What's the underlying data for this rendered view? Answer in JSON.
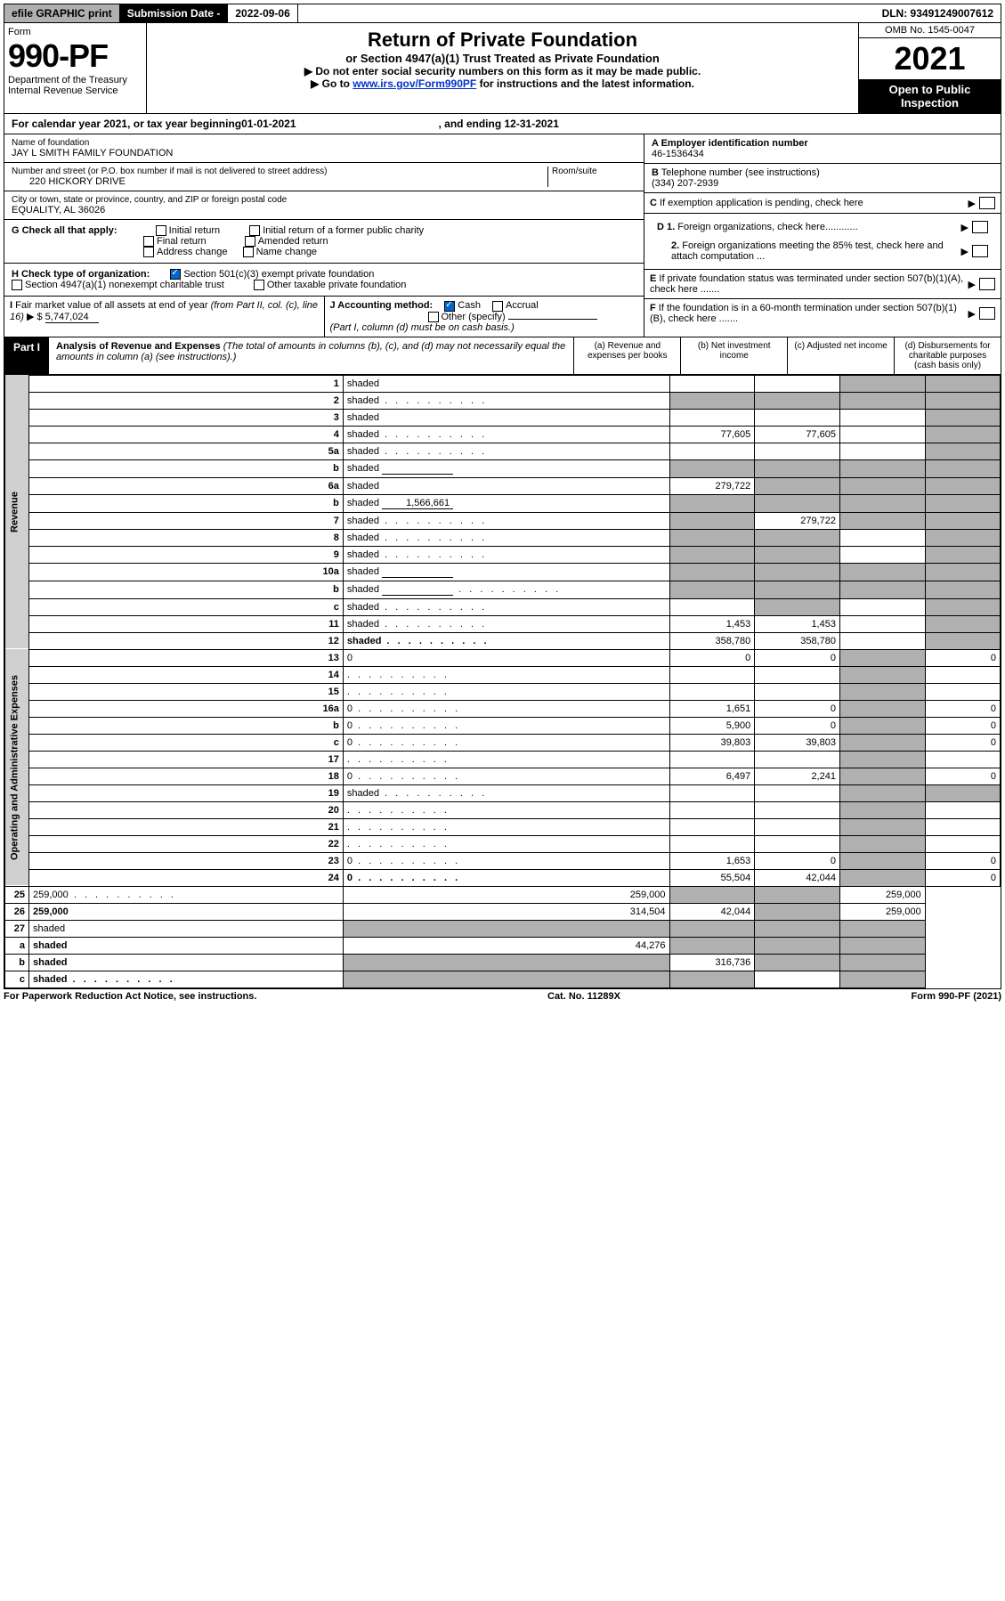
{
  "topbar": {
    "efile": "efile GRAPHIC print",
    "subdate_label": "Submission Date - ",
    "subdate_val": "2022-09-06",
    "dln": "DLN: 93491249007612"
  },
  "header": {
    "form_label": "Form",
    "formnum": "990-PF",
    "dept": "Department of the Treasury\nInternal Revenue Service",
    "title": "Return of Private Foundation",
    "subtitle": "or Section 4947(a)(1) Trust Treated as Private Foundation",
    "instr1": "▶ Do not enter social security numbers on this form as it may be made public.",
    "instr2_pre": "▶ Go to ",
    "instr2_link": "www.irs.gov/Form990PF",
    "instr2_post": " for instructions and the latest information.",
    "omb": "OMB No. 1545-0047",
    "year": "2021",
    "open": "Open to Public Inspection"
  },
  "calendar": {
    "pre": "For calendar year 2021, or tax year beginning ",
    "begin": "01-01-2021",
    "mid": ", and ending ",
    "end": "12-31-2021"
  },
  "info": {
    "name_label": "Name of foundation",
    "name": "JAY L SMITH FAMILY FOUNDATION",
    "addr_label": "Number and street (or P.O. box number if mail is not delivered to street address)",
    "addr": "220 HICKORY DRIVE",
    "room_label": "Room/suite",
    "city_label": "City or town, state or province, country, and ZIP or foreign postal code",
    "city": "EQUALITY, AL  36026",
    "a_label": "A Employer identification number",
    "a_val": "46-1536434",
    "b_label": "B Telephone number (see instructions)",
    "b_val": "(334) 207-2939",
    "c_label": "C If exemption application is pending, check here",
    "d1": "D 1. Foreign organizations, check here............",
    "d2": "2. Foreign organizations meeting the 85% test, check here and attach computation ...",
    "e_label": "E  If private foundation status was terminated under section 507(b)(1)(A), check here .......",
    "f_label": "F  If the foundation is in a 60-month termination under section 507(b)(1)(B), check here ......."
  },
  "g": {
    "label": "G Check all that apply:",
    "opts": [
      "Initial return",
      "Initial return of a former public charity",
      "Final return",
      "Amended return",
      "Address change",
      "Name change"
    ]
  },
  "h": {
    "label": "H Check type of organization:",
    "o1": "Section 501(c)(3) exempt private foundation",
    "o2": "Section 4947(a)(1) nonexempt charitable trust",
    "o3": "Other taxable private foundation"
  },
  "i": {
    "label": "I Fair market value of all assets at end of year (from Part II, col. (c), line 16)",
    "val": "5,747,024"
  },
  "j": {
    "label": "J Accounting method:",
    "o1": "Cash",
    "o2": "Accrual",
    "o3": "Other (specify)",
    "note": "(Part I, column (d) must be on cash basis.)"
  },
  "part1": {
    "label": "Part I",
    "title": "Analysis of Revenue and Expenses",
    "sub": "(The total of amounts in columns (b), (c), and (d) may not necessarily equal the amounts in column (a) (see instructions).)",
    "col_a": "(a)   Revenue and expenses per books",
    "col_b": "(b)   Net investment income",
    "col_c": "(c)   Adjusted net income",
    "col_d": "(d)   Disbursements for charitable purposes (cash basis only)"
  },
  "sections": {
    "revenue": "Revenue",
    "oae": "Operating and Administrative Expenses"
  },
  "rows": [
    {
      "n": "1",
      "d": "shaded",
      "a": "",
      "b": "",
      "c": "shaded"
    },
    {
      "n": "2",
      "d": "shaded",
      "a": "shaded",
      "b": "shaded",
      "c": "shaded",
      "dots": true,
      "bold_not": true
    },
    {
      "n": "3",
      "d": "shaded",
      "a": "",
      "b": "",
      "c": ""
    },
    {
      "n": "4",
      "d": "shaded",
      "a": "77,605",
      "b": "77,605",
      "c": "",
      "dots": true
    },
    {
      "n": "5a",
      "d": "shaded",
      "a": "",
      "b": "",
      "c": "",
      "dots": true
    },
    {
      "n": "b",
      "d": "shaded",
      "a": "shaded",
      "b": "shaded",
      "c": "shaded",
      "inline_blank": true
    },
    {
      "n": "6a",
      "d": "shaded",
      "a": "279,722",
      "b": "shaded",
      "c": "shaded"
    },
    {
      "n": "b",
      "d": "shaded",
      "a": "shaded",
      "b": "shaded",
      "c": "shaded",
      "inline_val": "1,566,661"
    },
    {
      "n": "7",
      "d": "shaded",
      "a": "shaded",
      "b": "279,722",
      "c": "shaded",
      "dots": true
    },
    {
      "n": "8",
      "d": "shaded",
      "a": "shaded",
      "b": "shaded",
      "c": "",
      "dots": true
    },
    {
      "n": "9",
      "d": "shaded",
      "a": "shaded",
      "b": "shaded",
      "c": "",
      "dots": true
    },
    {
      "n": "10a",
      "d": "shaded",
      "a": "shaded",
      "b": "shaded",
      "c": "shaded",
      "inline_blank": true
    },
    {
      "n": "b",
      "d": "shaded",
      "a": "shaded",
      "b": "shaded",
      "c": "shaded",
      "dots": true,
      "inline_blank": true
    },
    {
      "n": "c",
      "d": "shaded",
      "a": "",
      "b": "shaded",
      "c": "",
      "dots": true
    },
    {
      "n": "11",
      "d": "shaded",
      "a": "1,453",
      "b": "1,453",
      "c": "",
      "dots": true
    },
    {
      "n": "12",
      "d": "shaded",
      "a": "358,780",
      "b": "358,780",
      "c": "",
      "dots": true,
      "bold": true
    },
    {
      "n": "13",
      "d": "0",
      "a": "0",
      "b": "0",
      "c": "shaded"
    },
    {
      "n": "14",
      "d": "",
      "a": "",
      "b": "",
      "c": "shaded",
      "dots": true
    },
    {
      "n": "15",
      "d": "",
      "a": "",
      "b": "",
      "c": "shaded",
      "dots": true
    },
    {
      "n": "16a",
      "d": "0",
      "a": "1,651",
      "b": "0",
      "c": "shaded",
      "dots": true
    },
    {
      "n": "b",
      "d": "0",
      "a": "5,900",
      "b": "0",
      "c": "shaded",
      "dots": true
    },
    {
      "n": "c",
      "d": "0",
      "a": "39,803",
      "b": "39,803",
      "c": "shaded",
      "dots": true
    },
    {
      "n": "17",
      "d": "",
      "a": "",
      "b": "",
      "c": "shaded",
      "dots": true
    },
    {
      "n": "18",
      "d": "0",
      "a": "6,497",
      "b": "2,241",
      "c": "shaded",
      "dots": true
    },
    {
      "n": "19",
      "d": "shaded",
      "a": "",
      "b": "",
      "c": "shaded",
      "dots": true
    },
    {
      "n": "20",
      "d": "",
      "a": "",
      "b": "",
      "c": "shaded",
      "dots": true
    },
    {
      "n": "21",
      "d": "",
      "a": "",
      "b": "",
      "c": "shaded",
      "dots": true
    },
    {
      "n": "22",
      "d": "",
      "a": "",
      "b": "",
      "c": "shaded",
      "dots": true
    },
    {
      "n": "23",
      "d": "0",
      "a": "1,653",
      "b": "0",
      "c": "shaded",
      "dots": true
    },
    {
      "n": "24",
      "d": "0",
      "a": "55,504",
      "b": "42,044",
      "c": "shaded",
      "dots": true,
      "bold": true
    },
    {
      "n": "25",
      "d": "259,000",
      "a": "259,000",
      "b": "shaded",
      "c": "shaded",
      "dots": true
    },
    {
      "n": "26",
      "d": "259,000",
      "a": "314,504",
      "b": "42,044",
      "c": "shaded",
      "bold": true
    },
    {
      "n": "27",
      "d": "shaded",
      "a": "shaded",
      "b": "shaded",
      "c": "shaded"
    },
    {
      "n": "a",
      "d": "shaded",
      "a": "44,276",
      "b": "shaded",
      "c": "shaded",
      "bold": true
    },
    {
      "n": "b",
      "d": "shaded",
      "a": "shaded",
      "b": "316,736",
      "c": "shaded",
      "bold": true
    },
    {
      "n": "c",
      "d": "shaded",
      "a": "shaded",
      "b": "shaded",
      "c": "",
      "bold": true,
      "dots": true
    }
  ],
  "footer": {
    "left": "For Paperwork Reduction Act Notice, see instructions.",
    "mid": "Cat. No. 11289X",
    "right": "Form 990-PF (2021)"
  },
  "colors": {
    "shaded": "#b0b0b0",
    "link": "#0033cc",
    "black": "#000000"
  }
}
